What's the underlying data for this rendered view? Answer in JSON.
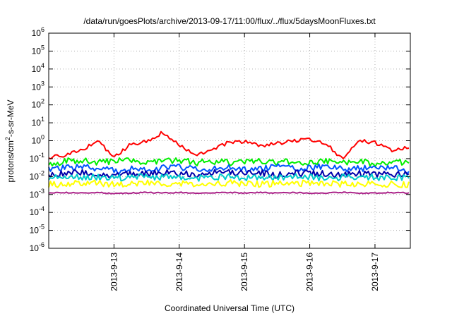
{
  "chart_data": {
    "type": "line",
    "title": "/data/run/goesPlots/archive/2013-09-17/11:00/flux/../flux/5daysMoonFluxes.txt",
    "xlabel": "Coordinated Universal Time (UTC)",
    "ylabel": {
      "prefix": "protons/cm",
      "superscript": "2",
      "suffix": "-s-sr-MeV"
    },
    "yscale": "log",
    "ylim": [
      1e-06,
      1000000.0
    ],
    "y_ticks": [
      {
        "base": "10",
        "exp": "-6",
        "value": 1e-06
      },
      {
        "base": "10",
        "exp": "-5",
        "value": 1e-05
      },
      {
        "base": "10",
        "exp": "-4",
        "value": 0.0001
      },
      {
        "base": "10",
        "exp": "-3",
        "value": 0.001
      },
      {
        "base": "10",
        "exp": "-2",
        "value": 0.01
      },
      {
        "base": "10",
        "exp": "-1",
        "value": 0.1
      },
      {
        "base": "10",
        "exp": "0",
        "value": 1
      },
      {
        "base": "10",
        "exp": "1",
        "value": 10
      },
      {
        "base": "10",
        "exp": "2",
        "value": 100
      },
      {
        "base": "10",
        "exp": "3",
        "value": 1000
      },
      {
        "base": "10",
        "exp": "4",
        "value": 10000
      },
      {
        "base": "10",
        "exp": "5",
        "value": 100000
      },
      {
        "base": "10",
        "exp": "6",
        "value": 1000000
      }
    ],
    "xlim": [
      "2013-09-12 00:00",
      "2013-09-17 13:00"
    ],
    "x_ticks": [
      {
        "label": "2013-9-13",
        "value": "2013-09-13 00:00"
      },
      {
        "label": "2013-9-14",
        "value": "2013-09-14 00:00"
      },
      {
        "label": "2013-9-15",
        "value": "2013-09-15 00:00"
      },
      {
        "label": "2013-9-16",
        "value": "2013-09-16 00:00"
      },
      {
        "label": "2013-9-17",
        "value": "2013-09-17 00:00"
      }
    ],
    "grid": true,
    "x": [
      "2013-09-12 00:00",
      "2013-09-12 06:00",
      "2013-09-12 12:00",
      "2013-09-12 18:00",
      "2013-09-13 00:00",
      "2013-09-13 06:00",
      "2013-09-13 12:00",
      "2013-09-13 18:00",
      "2013-09-14 00:00",
      "2013-09-14 06:00",
      "2013-09-14 12:00",
      "2013-09-14 18:00",
      "2013-09-15 00:00",
      "2013-09-15 06:00",
      "2013-09-15 12:00",
      "2013-09-15 18:00",
      "2013-09-16 00:00",
      "2013-09-16 06:00",
      "2013-09-16 12:00",
      "2013-09-16 18:00",
      "2013-09-17 00:00",
      "2013-09-17 06:00",
      "2013-09-17 12:00"
    ],
    "series": [
      {
        "color": "#ff0000",
        "values": [
          0.12,
          0.15,
          0.3,
          1.0,
          0.12,
          0.6,
          0.9,
          3.0,
          0.6,
          0.15,
          0.3,
          0.8,
          0.9,
          0.5,
          0.7,
          1.0,
          1.2,
          0.7,
          0.1,
          1.0,
          0.8,
          0.3,
          0.4
        ]
      },
      {
        "color": "#00ee00",
        "values": [
          0.05,
          0.07,
          0.08,
          0.06,
          0.07,
          0.08,
          0.06,
          0.07,
          0.08,
          0.06,
          0.07,
          0.06,
          0.07,
          0.08,
          0.06,
          0.07,
          0.06,
          0.08,
          0.06,
          0.07,
          0.05,
          0.06,
          0.07
        ]
      },
      {
        "color": "#0055ff",
        "values": [
          0.025,
          0.03,
          0.035,
          0.03,
          0.02,
          0.03,
          0.025,
          0.03,
          0.035,
          0.025,
          0.03,
          0.035,
          0.025,
          0.03,
          0.035,
          0.028,
          0.03,
          0.035,
          0.025,
          0.03,
          0.028,
          0.03,
          0.02
        ]
      },
      {
        "color": "#0000aa",
        "values": [
          0.012,
          0.015,
          0.018,
          0.014,
          0.012,
          0.016,
          0.014,
          0.018,
          0.015,
          0.012,
          0.016,
          0.018,
          0.014,
          0.016,
          0.012,
          0.015,
          0.016,
          0.014,
          0.012,
          0.016,
          0.013,
          0.014,
          0.015
        ]
      },
      {
        "color": "#00cccc",
        "values": [
          0.008,
          0.009,
          0.01,
          0.009,
          0.008,
          0.009,
          0.01,
          0.009,
          0.009,
          0.008,
          0.009,
          0.01,
          0.009,
          0.008,
          0.009,
          0.01,
          0.009,
          0.008,
          0.009,
          0.01,
          0.009,
          0.008,
          0.009
        ]
      },
      {
        "color": "#ffff00",
        "values": [
          0.0035,
          0.004,
          0.0045,
          0.0042,
          0.0038,
          0.004,
          0.0044,
          0.0042,
          0.004,
          0.0038,
          0.0042,
          0.0045,
          0.004,
          0.0038,
          0.0042,
          0.004,
          0.0044,
          0.004,
          0.0038,
          0.0042,
          0.004,
          0.0038,
          0.0035
        ]
      },
      {
        "color": "#aa2288",
        "values": [
          0.0012,
          0.0013,
          0.0012,
          0.0013,
          0.0011,
          0.0012,
          0.0013,
          0.0012,
          0.0013,
          0.0012,
          0.0012,
          0.0013,
          0.0012,
          0.0013,
          0.0012,
          0.0013,
          0.0012,
          0.0012,
          0.0013,
          0.0012,
          0.0012,
          0.0013,
          0.0012
        ]
      }
    ]
  }
}
